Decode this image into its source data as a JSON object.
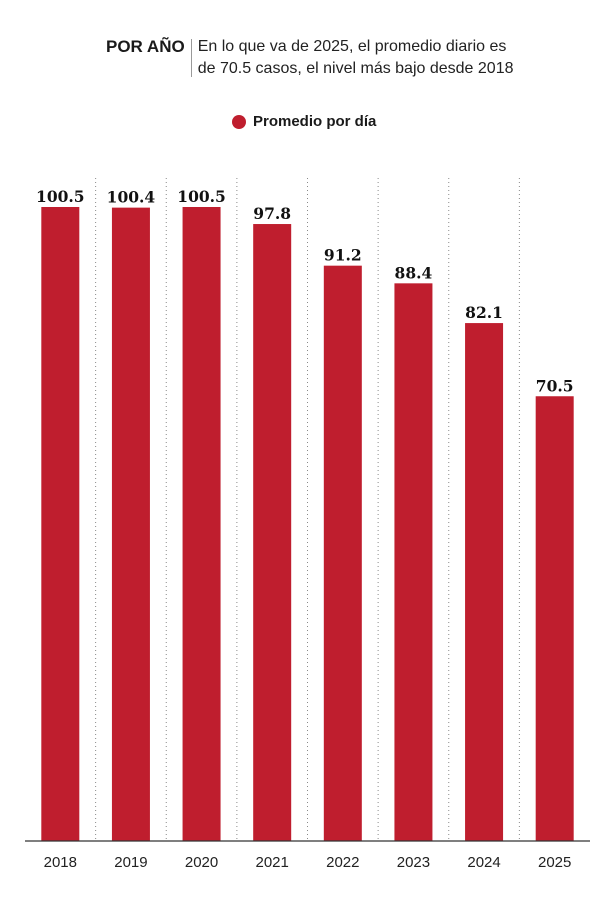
{
  "header": {
    "kicker": "POR AÑO",
    "subtitle_line1": "En lo que va de 2025, el promedio diario es",
    "subtitle_line2": "de 70.5 casos, el nivel más bajo desde 2018"
  },
  "legend": {
    "label": "Promedio por día",
    "color": "#bf1e2e"
  },
  "chart_data": {
    "type": "bar",
    "title": "",
    "xlabel": "",
    "ylabel": "",
    "categories": [
      "2018",
      "2019",
      "2020",
      "2021",
      "2022",
      "2023",
      "2024",
      "2025"
    ],
    "series": [
      {
        "name": "Promedio por día",
        "values": [
          100.5,
          100.4,
          100.5,
          97.8,
          91.2,
          88.4,
          82.1,
          70.5
        ],
        "color": "#bf1e2e"
      }
    ],
    "value_labels": [
      "100.5",
      "100.4",
      "100.5",
      "97.8",
      "91.2",
      "88.4",
      "82.1",
      "70.5"
    ],
    "ylim": [
      0,
      100.5
    ],
    "grid": "vertical dotted separators",
    "legend_position": "top-center"
  }
}
